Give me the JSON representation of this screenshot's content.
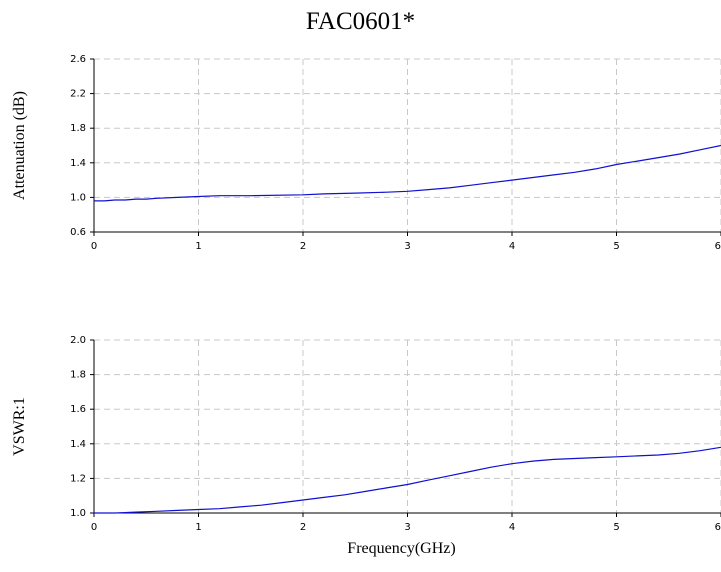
{
  "title": "FAC0601*",
  "chart_data": [
    {
      "type": "line",
      "ylabel": "Attenuation (dB)",
      "xlabel": "",
      "xlim": [
        0,
        6
      ],
      "ylim": [
        0.6,
        2.6
      ],
      "xticks": [
        "0",
        "1",
        "2",
        "3",
        "4",
        "5",
        "6"
      ],
      "yticks": [
        "0.6",
        "1.0",
        "1.4",
        "1.8",
        "2.2",
        "2.6"
      ],
      "ytick_values": [
        0.6,
        1.0,
        1.4,
        1.8,
        2.2,
        2.6
      ],
      "grid": true,
      "series": [
        {
          "color": "#1010d0",
          "x": [
            0,
            0.1,
            0.2,
            0.3,
            0.4,
            0.5,
            0.6,
            0.8,
            1.0,
            1.2,
            1.5,
            2.0,
            2.2,
            2.5,
            2.8,
            3.0,
            3.2,
            3.4,
            3.6,
            3.8,
            4.0,
            4.2,
            4.4,
            4.6,
            4.8,
            5.0,
            5.2,
            5.4,
            5.6,
            5.8,
            6.0
          ],
          "y": [
            0.96,
            0.96,
            0.97,
            0.97,
            0.98,
            0.98,
            0.99,
            1.0,
            1.01,
            1.02,
            1.02,
            1.03,
            1.04,
            1.05,
            1.06,
            1.07,
            1.09,
            1.11,
            1.14,
            1.17,
            1.2,
            1.23,
            1.26,
            1.29,
            1.33,
            1.38,
            1.42,
            1.46,
            1.5,
            1.55,
            1.6
          ]
        }
      ]
    },
    {
      "type": "line",
      "ylabel": "VSWR:1",
      "xlabel": "Frequency(GHz)",
      "xlim": [
        0,
        6
      ],
      "ylim": [
        1.0,
        2.0
      ],
      "xticks": [
        "0",
        "1",
        "2",
        "3",
        "4",
        "5",
        "6"
      ],
      "yticks": [
        "1.0",
        "1.2",
        "1.4",
        "1.6",
        "1.8",
        "2.0"
      ],
      "ytick_values": [
        1.0,
        1.2,
        1.4,
        1.6,
        1.8,
        2.0
      ],
      "grid": true,
      "series": [
        {
          "color": "#1010d0",
          "x": [
            0,
            0.2,
            0.4,
            0.6,
            0.8,
            1.0,
            1.2,
            1.4,
            1.6,
            1.8,
            2.0,
            2.2,
            2.4,
            2.6,
            2.8,
            3.0,
            3.2,
            3.4,
            3.6,
            3.8,
            4.0,
            4.2,
            4.4,
            4.6,
            4.8,
            5.0,
            5.2,
            5.4,
            5.6,
            5.8,
            6.0
          ],
          "y": [
            1.0,
            1.0,
            1.005,
            1.01,
            1.015,
            1.02,
            1.025,
            1.035,
            1.045,
            1.06,
            1.075,
            1.09,
            1.105,
            1.125,
            1.145,
            1.165,
            1.19,
            1.215,
            1.24,
            1.265,
            1.285,
            1.3,
            1.31,
            1.315,
            1.32,
            1.325,
            1.33,
            1.335,
            1.345,
            1.36,
            1.38
          ]
        }
      ]
    }
  ]
}
